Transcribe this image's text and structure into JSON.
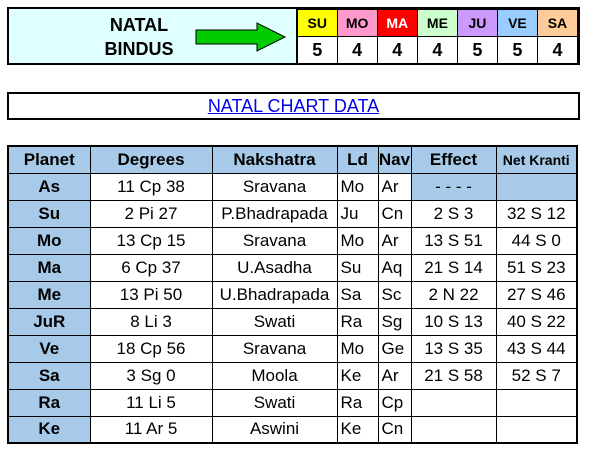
{
  "bindus": {
    "label_line1": "NATAL",
    "label_line2": "BINDUS",
    "planets": [
      {
        "abbr": "SU",
        "value": "5",
        "color": "#ffff00",
        "text_color": "#000000"
      },
      {
        "abbr": "MO",
        "value": "4",
        "color": "#ff99cc",
        "text_color": "#000000"
      },
      {
        "abbr": "MA",
        "value": "4",
        "color": "#ff0000",
        "text_color": "#ffffff"
      },
      {
        "abbr": "ME",
        "value": "4",
        "color": "#ccffcc",
        "text_color": "#000000"
      },
      {
        "abbr": "JU",
        "value": "5",
        "color": "#cc99ff",
        "text_color": "#000000"
      },
      {
        "abbr": "VE",
        "value": "5",
        "color": "#99ccff",
        "text_color": "#000000"
      },
      {
        "abbr": "SA",
        "value": "4",
        "color": "#ffcc99",
        "text_color": "#000000"
      }
    ],
    "arrow_color": "#00cc00"
  },
  "title": "NATAL CHART DATA",
  "table": {
    "headers": [
      "Planet",
      "Degrees",
      "Nakshatra",
      "Ld",
      "Nav",
      "Effect",
      "Net Kranti"
    ],
    "rows": [
      [
        "As",
        "11 Cp 38",
        "Sravana",
        "Mo",
        "Ar",
        "- - - -",
        ""
      ],
      [
        "Su",
        "2 Pi 27",
        "P.Bhadrapada",
        "Ju",
        "Cn",
        "2 S 3",
        "32 S 12"
      ],
      [
        "Mo",
        "13 Cp 15",
        "Sravana",
        "Mo",
        "Ar",
        "13 S 51",
        "44 S 0"
      ],
      [
        "Ma",
        "6 Cp 37",
        "U.Asadha",
        "Su",
        "Aq",
        "21 S 14",
        "51 S 23"
      ],
      [
        "Me",
        "13 Pi 50",
        "U.Bhadrapada",
        "Sa",
        "Sc",
        "2 N 22",
        "27 S 46"
      ],
      [
        "JuR",
        "8 Li 3",
        "Swati",
        "Ra",
        "Sg",
        "10 S 13",
        "40 S 22"
      ],
      [
        "Ve",
        "18 Cp 56",
        "Sravana",
        "Mo",
        "Ge",
        "13 S 35",
        "43 S 44"
      ],
      [
        "Sa",
        "3 Sg 0",
        "Moola",
        "Ke",
        "Ar",
        "21 S 58",
        "52 S 7"
      ],
      [
        "Ra",
        "11 Li 5",
        "Swati",
        "Ra",
        "Cp",
        "",
        ""
      ],
      [
        "Ke",
        "11 Ar 5",
        "Aswini",
        "Ke",
        "Cn",
        "",
        ""
      ]
    ]
  }
}
